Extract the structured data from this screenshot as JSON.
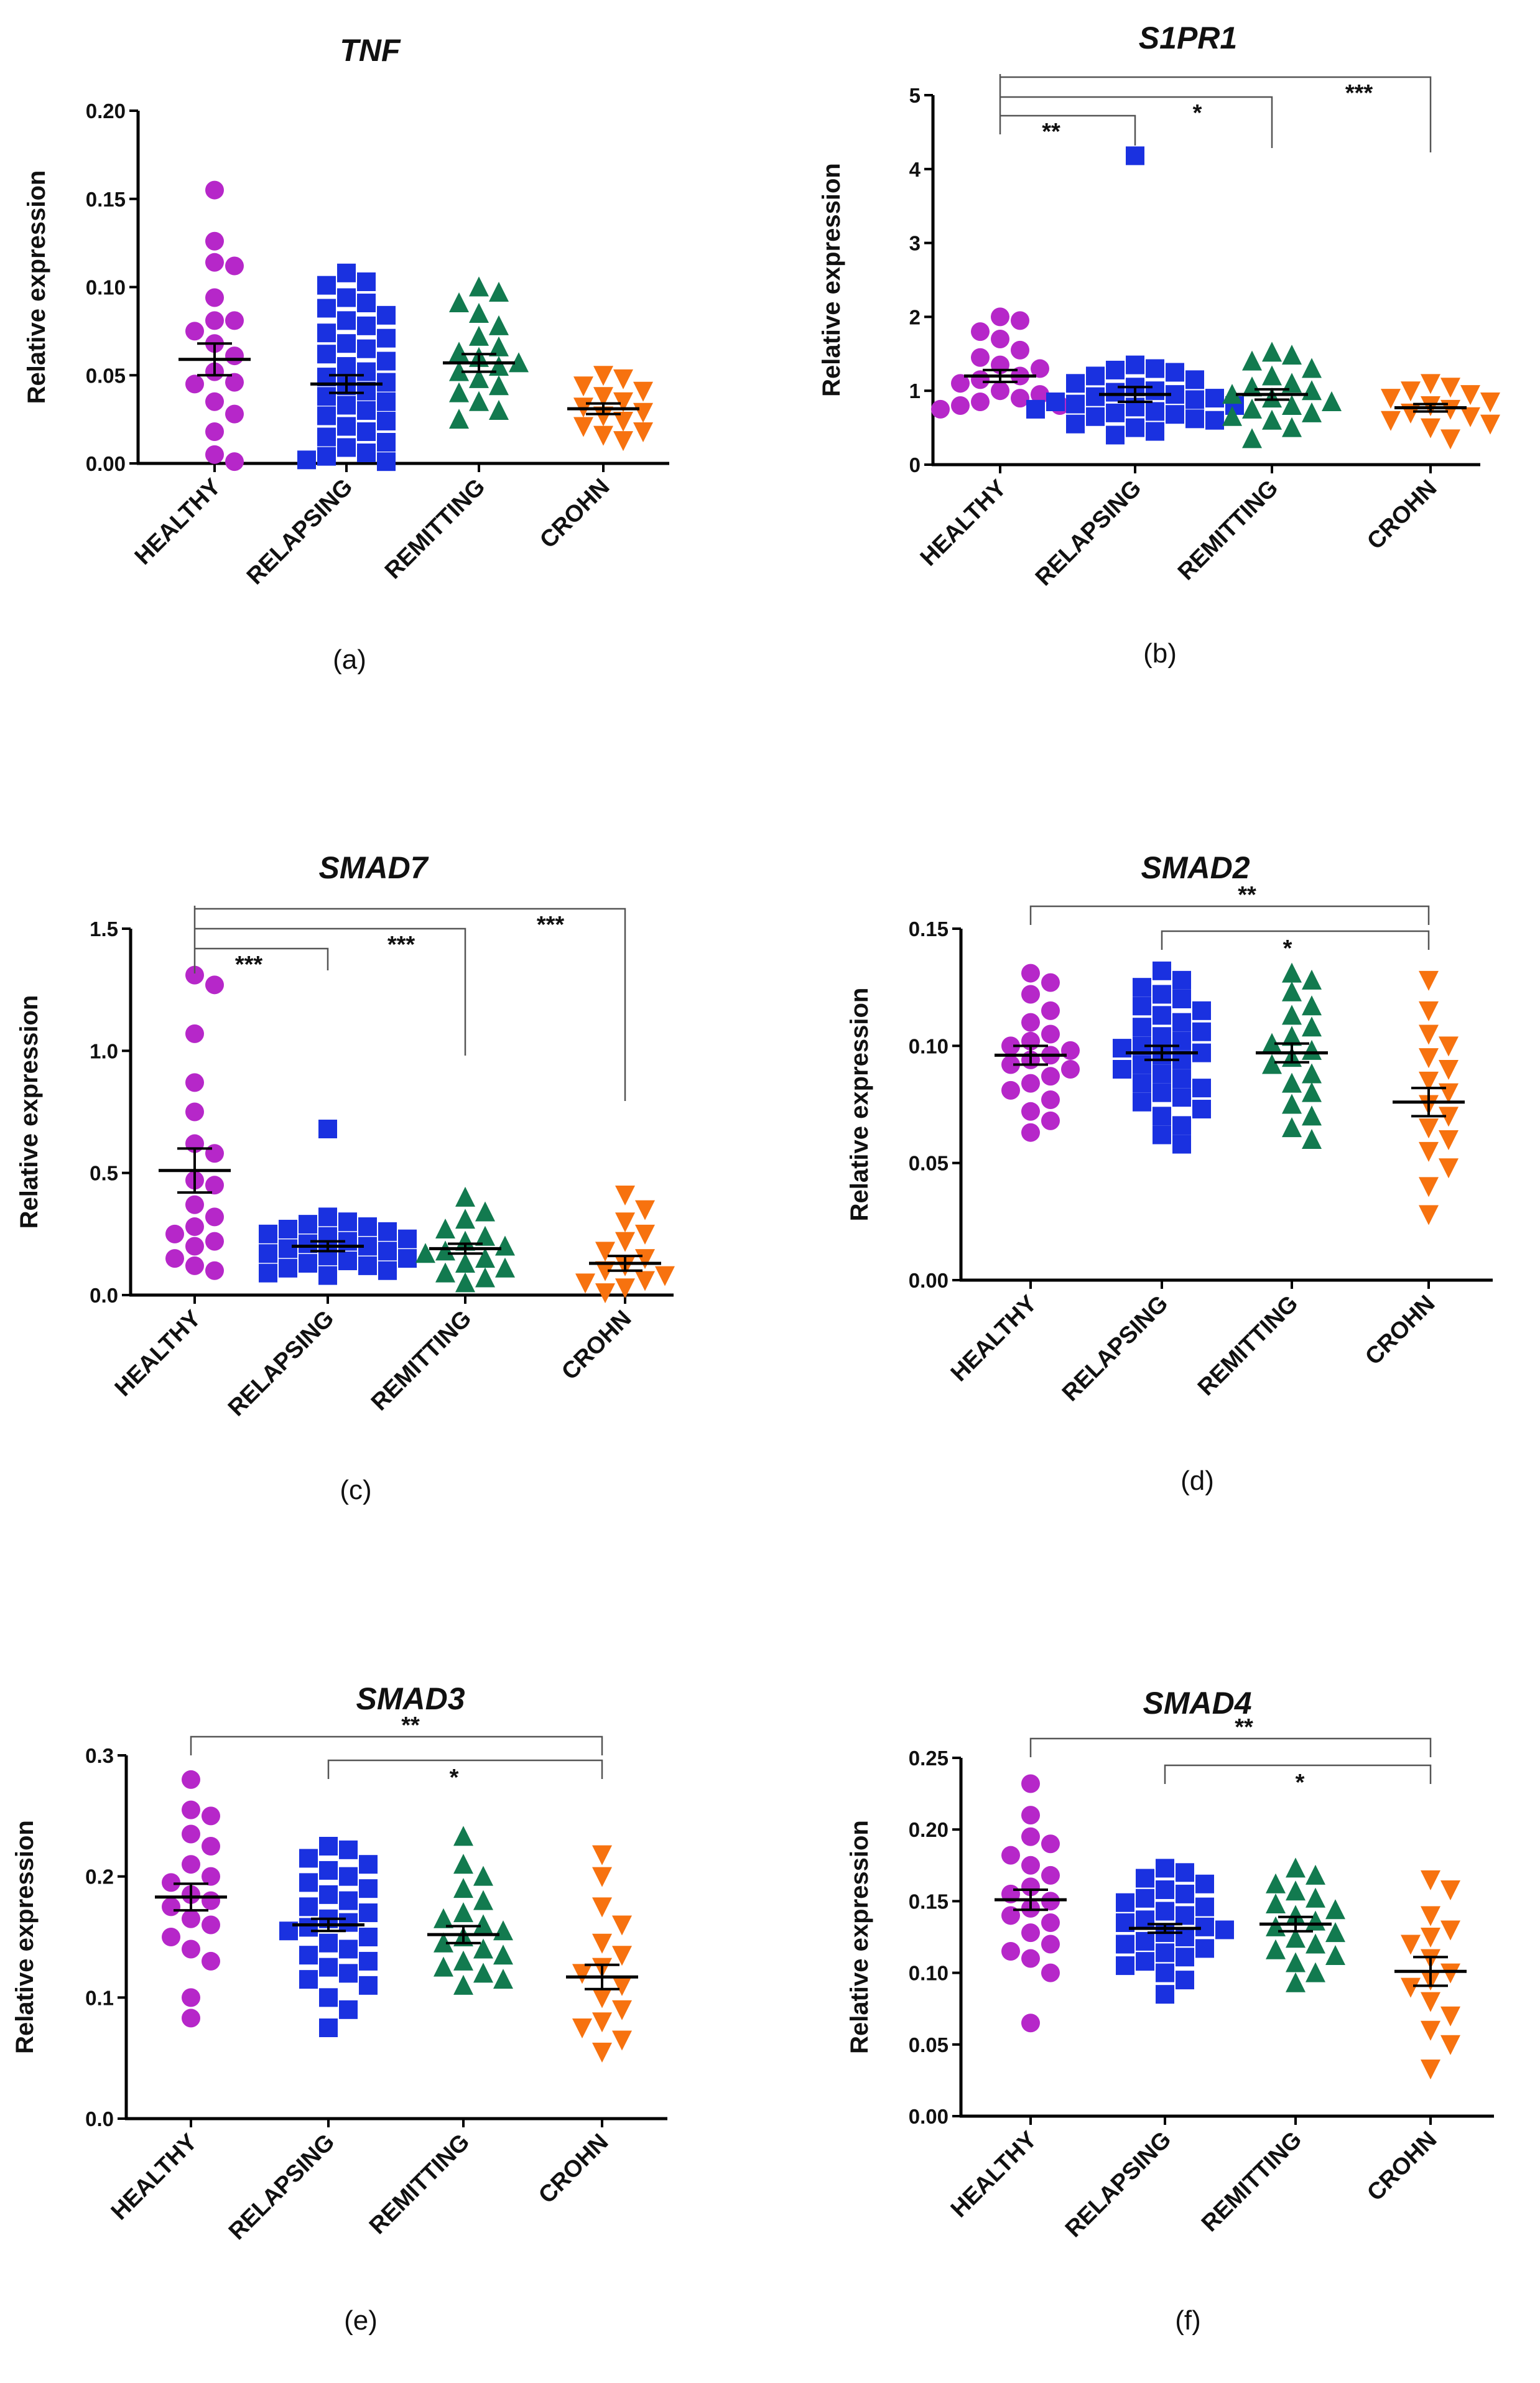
{
  "figure": {
    "panel_labels": [
      "(a)",
      "(b)",
      "(c)",
      "(d)",
      "(e)",
      "(f)"
    ]
  },
  "colors": {
    "HEALTHY": "#b627c9",
    "RELAPSING": "#1a31e0",
    "REMITTING": "#127a4f",
    "CROHN": "#f7720f"
  },
  "markers": {
    "HEALTHY": "circle",
    "RELAPSING": "square",
    "REMITTING": "triangle-up",
    "CROHN": "triangle-down"
  },
  "chart_data": [
    {
      "panel": "(a)",
      "type": "scatter",
      "title": "TNF",
      "ylabel": "Relative expression",
      "categories": [
        "HEALTHY",
        "RELAPSING",
        "REMITTING",
        "CROHN"
      ],
      "ylim": [
        0,
        0.2
      ],
      "yticks": [
        "0.00",
        "0.05",
        "0.10",
        "0.15",
        "0.20"
      ],
      "series": [
        {
          "name": "HEALTHY",
          "mean": 0.059,
          "sem": 0.009,
          "values": [
            0.155,
            0.126,
            0.114,
            0.112,
            0.094,
            0.081,
            0.081,
            0.075,
            0.068,
            0.061,
            0.052,
            0.046,
            0.045,
            0.035,
            0.028,
            0.018,
            0.005,
            0.001
          ]
        },
        {
          "name": "RELAPSING",
          "mean": 0.045,
          "sem": 0.005,
          "values": [
            0.108,
            0.103,
            0.101,
            0.094,
            0.091,
            0.088,
            0.084,
            0.081,
            0.078,
            0.074,
            0.071,
            0.068,
            0.065,
            0.062,
            0.058,
            0.055,
            0.052,
            0.049,
            0.046,
            0.044,
            0.041,
            0.038,
            0.035,
            0.033,
            0.03,
            0.027,
            0.024,
            0.021,
            0.018,
            0.015,
            0.012,
            0.009,
            0.006,
            0.004,
            0.002,
            0.001
          ]
        },
        {
          "name": "REMITTING",
          "mean": 0.057,
          "sem": 0.005,
          "values": [
            0.1,
            0.097,
            0.091,
            0.085,
            0.078,
            0.072,
            0.066,
            0.063,
            0.06,
            0.057,
            0.055,
            0.052,
            0.048,
            0.044,
            0.04,
            0.035,
            0.03,
            0.025
          ]
        },
        {
          "name": "CROHN",
          "mean": 0.031,
          "sem": 0.003,
          "values": [
            0.05,
            0.048,
            0.044,
            0.041,
            0.038,
            0.035,
            0.032,
            0.029,
            0.027,
            0.024,
            0.021,
            0.018,
            0.016,
            0.013
          ]
        }
      ],
      "significance": []
    },
    {
      "panel": "(b)",
      "type": "scatter",
      "title": "S1PR1",
      "ylabel": "Relative expression",
      "categories": [
        "HEALTHY",
        "RELAPSING",
        "REMITTING",
        "CROHN"
      ],
      "ylim": [
        0,
        5
      ],
      "yticks": [
        "0",
        "1",
        "2",
        "3",
        "4",
        "5"
      ],
      "series": [
        {
          "name": "HEALTHY",
          "mean": 1.2,
          "sem": 0.08,
          "values": [
            2.0,
            1.95,
            1.8,
            1.7,
            1.55,
            1.45,
            1.35,
            1.3,
            1.2,
            1.15,
            1.1,
            1.0,
            0.95,
            0.9,
            0.85,
            0.8,
            0.8,
            0.75
          ]
        },
        {
          "name": "RELAPSING",
          "mean": 0.95,
          "sem": 0.1,
          "values": [
            4.18,
            1.35,
            1.3,
            1.28,
            1.25,
            1.2,
            1.15,
            1.1,
            1.05,
            1.0,
            0.98,
            0.95,
            0.92,
            0.9,
            0.88,
            0.85,
            0.82,
            0.8,
            0.78,
            0.75,
            0.72,
            0.7,
            0.68,
            0.65,
            0.62,
            0.6,
            0.55,
            0.5,
            0.45,
            0.4
          ]
        },
        {
          "name": "REMITTING",
          "mean": 0.95,
          "sem": 0.07,
          "values": [
            1.52,
            1.48,
            1.4,
            1.3,
            1.2,
            1.1,
            1.05,
            1.0,
            0.95,
            0.9,
            0.85,
            0.8,
            0.75,
            0.7,
            0.65,
            0.6,
            0.5,
            0.35
          ]
        },
        {
          "name": "CROHN",
          "mean": 0.77,
          "sem": 0.05,
          "values": [
            1.1,
            1.05,
            1.0,
            0.95,
            0.9,
            0.85,
            0.8,
            0.75,
            0.7,
            0.65,
            0.6,
            0.55,
            0.5,
            0.35
          ]
        }
      ],
      "significance": [
        {
          "from": 0,
          "to": 1,
          "label": "**"
        },
        {
          "from": 0,
          "to": 2,
          "label": "*"
        },
        {
          "from": 0,
          "to": 3,
          "label": "***"
        }
      ]
    },
    {
      "panel": "(c)",
      "type": "scatter",
      "title": "SMAD7",
      "ylabel": "Relative expression",
      "categories": [
        "HEALTHY",
        "RELAPSING",
        "REMITTING",
        "CROHN"
      ],
      "ylim": [
        0,
        1.5
      ],
      "yticks": [
        "0.0",
        "0.5",
        "1.0",
        "1.5"
      ],
      "series": [
        {
          "name": "HEALTHY",
          "mean": 0.51,
          "sem": 0.09,
          "values": [
            1.31,
            1.27,
            1.07,
            0.87,
            0.75,
            0.62,
            0.58,
            0.47,
            0.45,
            0.37,
            0.32,
            0.28,
            0.25,
            0.22,
            0.2,
            0.15,
            0.12,
            0.1
          ]
        },
        {
          "name": "RELAPSING",
          "mean": 0.2,
          "sem": 0.02,
          "values": [
            0.68,
            0.32,
            0.3,
            0.29,
            0.28,
            0.27,
            0.26,
            0.25,
            0.24,
            0.23,
            0.22,
            0.21,
            0.2,
            0.19,
            0.18,
            0.17,
            0.16,
            0.15,
            0.14,
            0.13,
            0.12,
            0.11,
            0.1,
            0.09,
            0.08
          ]
        },
        {
          "name": "REMITTING",
          "mean": 0.19,
          "sem": 0.02,
          "values": [
            0.4,
            0.34,
            0.31,
            0.27,
            0.24,
            0.22,
            0.2,
            0.18,
            0.17,
            0.15,
            0.13,
            0.11,
            0.09,
            0.07,
            0.05
          ]
        },
        {
          "name": "CROHN",
          "mean": 0.13,
          "sem": 0.03,
          "values": [
            0.41,
            0.35,
            0.3,
            0.25,
            0.22,
            0.18,
            0.15,
            0.12,
            0.1,
            0.08,
            0.06,
            0.05,
            0.03,
            0.01
          ]
        }
      ],
      "significance": [
        {
          "from": 0,
          "to": 1,
          "label": "***"
        },
        {
          "from": 0,
          "to": 2,
          "label": "***"
        },
        {
          "from": 0,
          "to": 3,
          "label": "***"
        }
      ]
    },
    {
      "panel": "(d)",
      "type": "scatter",
      "title": "SMAD2",
      "ylabel": "Relative expression",
      "categories": [
        "HEALTHY",
        "RELAPSING",
        "REMITTING",
        "CROHN"
      ],
      "ylim": [
        0,
        0.15
      ],
      "yticks": [
        "0.00",
        "0.05",
        "0.10",
        "0.15"
      ],
      "series": [
        {
          "name": "HEALTHY",
          "mean": 0.096,
          "sem": 0.004,
          "values": [
            0.131,
            0.127,
            0.122,
            0.115,
            0.11,
            0.105,
            0.102,
            0.1,
            0.098,
            0.096,
            0.094,
            0.092,
            0.09,
            0.087,
            0.084,
            0.081,
            0.077,
            0.072,
            0.068,
            0.063
          ]
        },
        {
          "name": "RELAPSING",
          "mean": 0.097,
          "sem": 0.003,
          "values": [
            0.132,
            0.128,
            0.125,
            0.122,
            0.12,
            0.117,
            0.115,
            0.113,
            0.11,
            0.108,
            0.106,
            0.104,
            0.102,
            0.1,
            0.099,
            0.097,
            0.096,
            0.094,
            0.092,
            0.09,
            0.088,
            0.086,
            0.084,
            0.082,
            0.08,
            0.078,
            0.076,
            0.073,
            0.07,
            0.066,
            0.062,
            0.058
          ]
        },
        {
          "name": "REMITTING",
          "mean": 0.097,
          "sem": 0.004,
          "values": [
            0.131,
            0.128,
            0.123,
            0.117,
            0.113,
            0.108,
            0.104,
            0.101,
            0.098,
            0.095,
            0.092,
            0.088,
            0.084,
            0.08,
            0.075,
            0.07,
            0.065,
            0.06
          ]
        },
        {
          "name": "CROHN",
          "mean": 0.076,
          "sem": 0.006,
          "values": [
            0.128,
            0.115,
            0.105,
            0.1,
            0.095,
            0.09,
            0.085,
            0.08,
            0.075,
            0.07,
            0.065,
            0.06,
            0.055,
            0.048,
            0.04,
            0.028
          ]
        }
      ],
      "significance": [
        {
          "from": 0,
          "to": 3,
          "label": "**"
        },
        {
          "from": 1,
          "to": 3,
          "label": "*"
        }
      ]
    },
    {
      "panel": "(e)",
      "type": "scatter",
      "title": "SMAD3",
      "ylabel": "Relative expression",
      "categories": [
        "HEALTHY",
        "RELAPSING",
        "REMITTING",
        "CROHN"
      ],
      "ylim": [
        0,
        0.3
      ],
      "yticks": [
        "0.0",
        "0.1",
        "0.2",
        "0.3"
      ],
      "series": [
        {
          "name": "HEALTHY",
          "mean": 0.183,
          "sem": 0.011,
          "values": [
            0.28,
            0.255,
            0.25,
            0.235,
            0.225,
            0.21,
            0.2,
            0.195,
            0.185,
            0.18,
            0.175,
            0.165,
            0.16,
            0.15,
            0.14,
            0.13,
            0.1,
            0.083
          ]
        },
        {
          "name": "RELAPSING",
          "mean": 0.16,
          "sem": 0.005,
          "values": [
            0.225,
            0.222,
            0.215,
            0.21,
            0.205,
            0.2,
            0.195,
            0.19,
            0.185,
            0.18,
            0.175,
            0.17,
            0.165,
            0.162,
            0.158,
            0.155,
            0.15,
            0.145,
            0.14,
            0.135,
            0.13,
            0.125,
            0.12,
            0.115,
            0.11,
            0.1,
            0.09,
            0.075
          ]
        },
        {
          "name": "REMITTING",
          "mean": 0.152,
          "sem": 0.007,
          "values": [
            0.233,
            0.21,
            0.2,
            0.19,
            0.18,
            0.17,
            0.165,
            0.16,
            0.155,
            0.15,
            0.145,
            0.14,
            0.135,
            0.13,
            0.125,
            0.12,
            0.115,
            0.11
          ]
        },
        {
          "name": "CROHN",
          "mean": 0.117,
          "sem": 0.01,
          "values": [
            0.218,
            0.2,
            0.175,
            0.16,
            0.145,
            0.135,
            0.125,
            0.12,
            0.11,
            0.1,
            0.09,
            0.08,
            0.075,
            0.065,
            0.055
          ]
        }
      ],
      "significance": [
        {
          "from": 0,
          "to": 3,
          "label": "**"
        },
        {
          "from": 1,
          "to": 3,
          "label": "*"
        }
      ]
    },
    {
      "panel": "(f)",
      "type": "scatter",
      "title": "SMAD4",
      "ylabel": "Relative expression",
      "categories": [
        "HEALTHY",
        "RELAPSING",
        "REMITTING",
        "CROHN"
      ],
      "ylim": [
        0,
        0.25
      ],
      "yticks": [
        "0.00",
        "0.05",
        "0.10",
        "0.15",
        "0.20",
        "0.25"
      ],
      "series": [
        {
          "name": "HEALTHY",
          "mean": 0.151,
          "sem": 0.007,
          "values": [
            0.232,
            0.21,
            0.195,
            0.19,
            0.182,
            0.175,
            0.168,
            0.16,
            0.155,
            0.15,
            0.145,
            0.14,
            0.135,
            0.128,
            0.12,
            0.115,
            0.11,
            0.1,
            0.065
          ]
        },
        {
          "name": "RELAPSING",
          "mean": 0.131,
          "sem": 0.003,
          "values": [
            0.173,
            0.17,
            0.166,
            0.162,
            0.158,
            0.155,
            0.152,
            0.149,
            0.146,
            0.143,
            0.14,
            0.137,
            0.135,
            0.132,
            0.13,
            0.128,
            0.125,
            0.122,
            0.12,
            0.117,
            0.114,
            0.111,
            0.108,
            0.105,
            0.1,
            0.095,
            0.085
          ]
        },
        {
          "name": "REMITTING",
          "mean": 0.134,
          "sem": 0.005,
          "values": [
            0.173,
            0.168,
            0.162,
            0.157,
            0.152,
            0.148,
            0.144,
            0.14,
            0.136,
            0.132,
            0.128,
            0.124,
            0.12,
            0.116,
            0.112,
            0.107,
            0.1,
            0.093
          ]
        },
        {
          "name": "CROHN",
          "mean": 0.101,
          "sem": 0.01,
          "values": [
            0.165,
            0.158,
            0.14,
            0.13,
            0.125,
            0.12,
            0.11,
            0.1,
            0.095,
            0.09,
            0.08,
            0.07,
            0.06,
            0.05,
            0.033
          ]
        }
      ],
      "significance": [
        {
          "from": 0,
          "to": 3,
          "label": "**"
        },
        {
          "from": 1,
          "to": 3,
          "label": "*"
        }
      ]
    }
  ]
}
